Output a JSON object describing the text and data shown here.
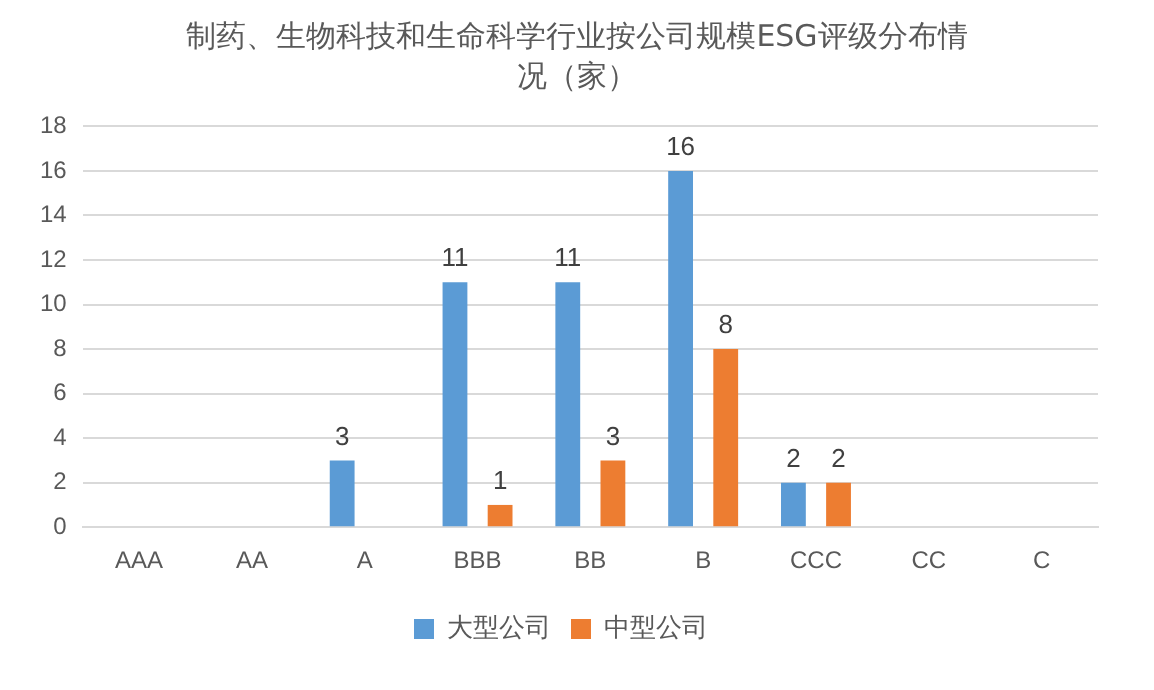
{
  "chart_data": {
    "type": "bar",
    "title": "制药、生物科技和生命科学行业按公司规模ESG评级分布情况（家）",
    "categories": [
      "AAA",
      "AA",
      "A",
      "BBB",
      "BB",
      "B",
      "CCC",
      "CC",
      "C"
    ],
    "series": [
      {
        "name": "大型公司",
        "color": "#5b9bd5",
        "values": [
          0,
          0,
          3,
          11,
          11,
          16,
          2,
          0,
          0
        ],
        "value_labels": [
          null,
          null,
          "3",
          "11",
          "11",
          "16",
          "2",
          null,
          null
        ]
      },
      {
        "name": "中型公司",
        "color": "#ed7d31",
        "values": [
          0,
          0,
          0,
          1,
          3,
          8,
          2,
          0,
          0
        ],
        "value_labels": [
          null,
          null,
          null,
          "1",
          "3",
          "8",
          "2",
          null,
          null
        ]
      }
    ],
    "ylim": [
      0,
      18
    ],
    "yticks": [
      0,
      2,
      4,
      6,
      8,
      10,
      12,
      14,
      16,
      18
    ],
    "grid": "y",
    "legend": "bottom"
  }
}
